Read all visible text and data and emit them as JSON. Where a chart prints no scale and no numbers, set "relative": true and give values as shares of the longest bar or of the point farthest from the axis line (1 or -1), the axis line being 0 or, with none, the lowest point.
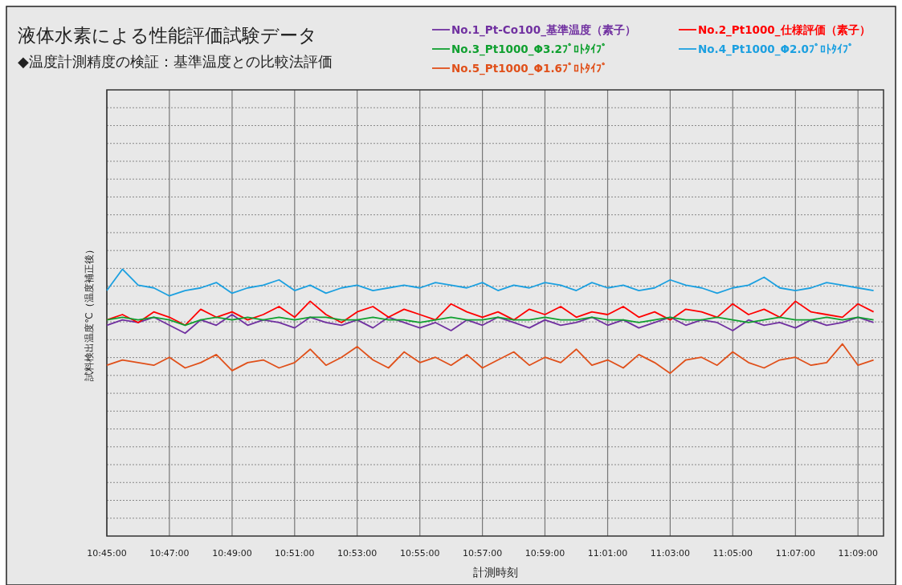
{
  "chart_data": {
    "type": "line",
    "title": "液体水素による性能評価試験データ",
    "subtitle": "◆温度計測精度の検証：基準温度との比較法評価",
    "xlabel": "計測時刻",
    "ylabel": "試料検出温度℃（温度補正後）",
    "relative": true,
    "grid": true,
    "legend": "top right",
    "marker": "none",
    "line_style": "solid",
    "xlim": [
      10.75,
      11.1636
    ],
    "xticks": [
      {
        "value": 10.75,
        "label": "10:45:00"
      },
      {
        "value": 10.7833,
        "label": "10:47:00"
      },
      {
        "value": 10.8167,
        "label": "10:49:00"
      },
      {
        "value": 10.85,
        "label": "10:51:00"
      },
      {
        "value": 10.8833,
        "label": "10:53:00"
      },
      {
        "value": 10.9167,
        "label": "10:55:00"
      },
      {
        "value": 10.95,
        "label": "10:57:00"
      },
      {
        "value": 10.9833,
        "label": "10:59:00"
      },
      {
        "value": 11.0167,
        "label": "11:01:00"
      },
      {
        "value": 11.05,
        "label": "11:03:00"
      },
      {
        "value": 11.0833,
        "label": "11:05:00"
      },
      {
        "value": 11.1167,
        "label": "11:07:00"
      },
      {
        "value": 11.15,
        "label": "11:09:00"
      }
    ],
    "x": [
      10.75,
      10.7583,
      10.7667,
      10.775,
      10.7833,
      10.7917,
      10.8,
      10.8083,
      10.8167,
      10.825,
      10.8333,
      10.8417,
      10.85,
      10.8583,
      10.8667,
      10.875,
      10.8833,
      10.8917,
      10.9,
      10.9083,
      10.9167,
      10.925,
      10.9333,
      10.9417,
      10.95,
      10.9583,
      10.9667,
      10.975,
      10.9833,
      10.9917,
      11.0,
      11.0083,
      11.0167,
      11.025,
      11.0333,
      11.0417,
      11.05,
      11.0583,
      11.0667,
      11.075,
      11.0833,
      11.0917,
      11.1,
      11.1083,
      11.1167,
      11.125,
      11.1333,
      11.1417,
      11.15,
      11.1583
    ],
    "series": [
      {
        "name": "No.1_Pt-Co100_基準温度（素子）",
        "color": "#7030a0",
        "values": [
          0.79,
          0.81,
          0.8,
          0.82,
          0.79,
          0.76,
          0.81,
          0.79,
          0.83,
          0.79,
          0.81,
          0.8,
          0.78,
          0.82,
          0.8,
          0.79,
          0.81,
          0.78,
          0.82,
          0.8,
          0.78,
          0.8,
          0.77,
          0.81,
          0.79,
          0.82,
          0.8,
          0.78,
          0.81,
          0.79,
          0.8,
          0.82,
          0.79,
          0.81,
          0.78,
          0.8,
          0.82,
          0.79,
          0.81,
          0.8,
          0.77,
          0.81,
          0.79,
          0.8,
          0.78,
          0.81,
          0.79,
          0.8,
          0.82,
          0.8
        ]
      },
      {
        "name": "No.2_Pt1000_仕様評価（素子）",
        "color": "#ff0000",
        "values": [
          0.81,
          0.83,
          0.8,
          0.84,
          0.82,
          0.79,
          0.85,
          0.82,
          0.84,
          0.81,
          0.83,
          0.86,
          0.82,
          0.88,
          0.83,
          0.8,
          0.84,
          0.86,
          0.82,
          0.85,
          0.83,
          0.81,
          0.87,
          0.84,
          0.82,
          0.84,
          0.81,
          0.85,
          0.83,
          0.86,
          0.82,
          0.84,
          0.83,
          0.86,
          0.82,
          0.84,
          0.81,
          0.85,
          0.84,
          0.82,
          0.87,
          0.83,
          0.85,
          0.82,
          0.88,
          0.84,
          0.83,
          0.82,
          0.87,
          0.84
        ]
      },
      {
        "name": "No.3_Pt1000_Φ3.2ﾌﾟﾛﾄﾀｲﾌﾟ",
        "color": "#10a030",
        "values": [
          0.81,
          0.82,
          0.81,
          0.82,
          0.81,
          0.79,
          0.81,
          0.82,
          0.81,
          0.82,
          0.81,
          0.82,
          0.81,
          0.82,
          0.82,
          0.81,
          0.81,
          0.82,
          0.81,
          0.81,
          0.8,
          0.81,
          0.82,
          0.81,
          0.81,
          0.82,
          0.81,
          0.81,
          0.82,
          0.81,
          0.81,
          0.82,
          0.81,
          0.81,
          0.8,
          0.81,
          0.82,
          0.81,
          0.81,
          0.82,
          0.81,
          0.8,
          0.81,
          0.82,
          0.81,
          0.81,
          0.82,
          0.81,
          0.82,
          0.81
        ]
      },
      {
        "name": "No.4_Pt1000_Φ2.0ﾌﾟﾛﾄﾀｲﾌﾟ",
        "color": "#1ca0e0",
        "values": [
          0.92,
          1.0,
          0.94,
          0.93,
          0.9,
          0.92,
          0.93,
          0.95,
          0.91,
          0.93,
          0.94,
          0.96,
          0.92,
          0.94,
          0.91,
          0.93,
          0.94,
          0.92,
          0.93,
          0.94,
          0.93,
          0.95,
          0.94,
          0.93,
          0.95,
          0.92,
          0.94,
          0.93,
          0.95,
          0.94,
          0.92,
          0.95,
          0.93,
          0.94,
          0.92,
          0.93,
          0.96,
          0.94,
          0.93,
          0.91,
          0.93,
          0.94,
          0.97,
          0.93,
          0.92,
          0.93,
          0.95,
          0.94,
          0.93,
          0.92
        ]
      },
      {
        "name": "No.5_Pt1000_Φ1.6ﾌﾟﾛﾄﾀｲﾌﾟ",
        "color": "#e0501a",
        "values": [
          0.64,
          0.66,
          0.65,
          0.64,
          0.67,
          0.63,
          0.65,
          0.68,
          0.62,
          0.65,
          0.66,
          0.63,
          0.65,
          0.7,
          0.64,
          0.67,
          0.71,
          0.66,
          0.63,
          0.69,
          0.65,
          0.67,
          0.64,
          0.68,
          0.63,
          0.66,
          0.69,
          0.64,
          0.67,
          0.65,
          0.7,
          0.64,
          0.66,
          0.63,
          0.68,
          0.65,
          0.61,
          0.66,
          0.67,
          0.64,
          0.69,
          0.65,
          0.63,
          0.66,
          0.67,
          0.64,
          0.65,
          0.72,
          0.64,
          0.66
        ]
      }
    ]
  }
}
